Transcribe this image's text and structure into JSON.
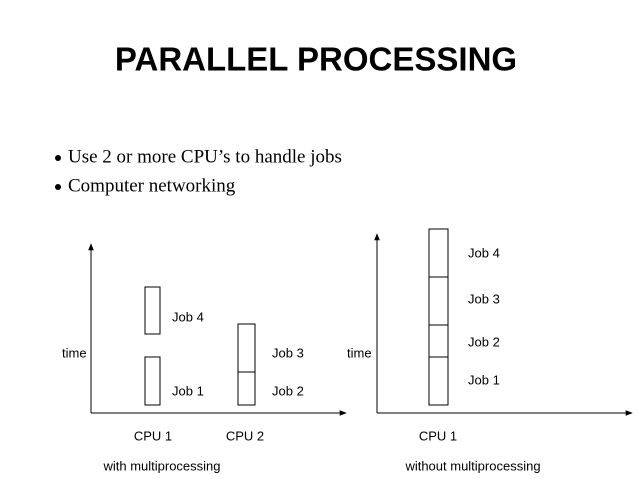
{
  "title": "PARALLEL PROCESSING",
  "bullets": [
    "Use 2 or more CPU’s to handle jobs",
    "Computer networking"
  ],
  "diagrams": [
    {
      "axis_label": "time",
      "cpus": [
        "CPU 1",
        "CPU 2"
      ],
      "jobs": [
        "Job 4",
        "Job 1",
        "Job 3",
        "Job 2"
      ],
      "caption": "with multiprocessing"
    },
    {
      "axis_label": "time",
      "cpus": [
        "CPU 1"
      ],
      "jobs": [
        "Job 4",
        "Job 3",
        "Job 2",
        "Job 1"
      ],
      "caption": "without multiprocessing"
    }
  ]
}
